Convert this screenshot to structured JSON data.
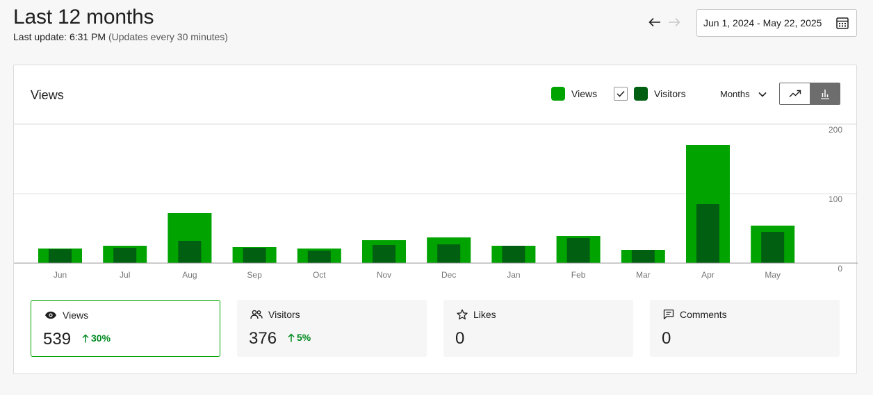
{
  "header": {
    "title": "Last 12 months",
    "last_update_label": "Last update: 6:31 PM",
    "update_frequency": "(Updates every 30 minutes)",
    "date_range": "Jun 1, 2024 - May 22, 2025"
  },
  "panel": {
    "title": "Views",
    "period": "Months"
  },
  "legend": {
    "views": "Views",
    "visitors": "Visitors",
    "visitors_checked": true
  },
  "colors": {
    "views": "#00a300",
    "visitors": "#005f11",
    "accent": "#00a300",
    "positive": "#008a20"
  },
  "icons": {
    "prev": "arrow-left-icon",
    "next": "arrow-right-icon",
    "calendar": "calendar-icon",
    "line_chart": "line-chart-icon",
    "bar_chart": "bar-chart-icon",
    "views": "eye-icon",
    "visitors": "people-icon",
    "likes": "star-icon",
    "comments": "comment-icon"
  },
  "chart_data": {
    "type": "bar",
    "categories": [
      "Jun",
      "Jul",
      "Aug",
      "Sep",
      "Oct",
      "Nov",
      "Dec",
      "Jan",
      "Feb",
      "Mar",
      "Apr",
      "May"
    ],
    "series": [
      {
        "name": "Views",
        "values": [
          21,
          25,
          72,
          23,
          21,
          33,
          37,
          25,
          39,
          19,
          170,
          54
        ]
      },
      {
        "name": "Visitors",
        "values": [
          20,
          22,
          32,
          22,
          18,
          26,
          27,
          25,
          36,
          19,
          85,
          45
        ]
      }
    ],
    "yticks": [
      "0",
      "100",
      "200"
    ],
    "ylim": [
      0,
      200
    ],
    "grid": true,
    "legend_position": "top-right"
  },
  "stats": [
    {
      "label": "Views",
      "value": "539",
      "change": "30%",
      "selected": true
    },
    {
      "label": "Visitors",
      "value": "376",
      "change": "5%",
      "selected": false
    },
    {
      "label": "Likes",
      "value": "0",
      "change": "",
      "selected": false
    },
    {
      "label": "Comments",
      "value": "0",
      "change": "",
      "selected": false
    }
  ]
}
